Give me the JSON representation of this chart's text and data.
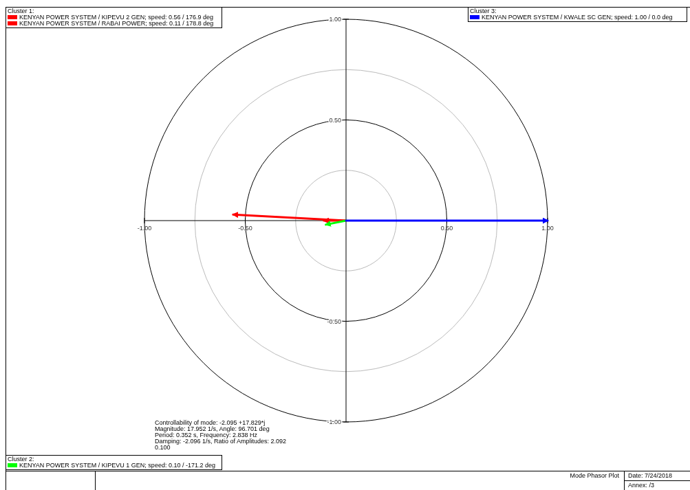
{
  "chart_data": {
    "type": "line",
    "title": "Mode Phasor Plot",
    "xlim": [
      -1,
      1
    ],
    "ylim": [
      -1,
      1
    ],
    "xticks": [
      {
        "value": -1,
        "label": "-1.00"
      },
      {
        "value": -0.5,
        "label": "-0.50"
      },
      {
        "value": 0.5,
        "label": "0.50"
      },
      {
        "value": 1,
        "label": "1.00"
      }
    ],
    "yticks": [
      {
        "value": -1,
        "label": "-1.00"
      },
      {
        "value": -0.5,
        "label": "-0.50"
      },
      {
        "value": 0.5,
        "label": "0.50"
      },
      {
        "value": 1,
        "label": "1.00"
      }
    ],
    "legend": "bottom left",
    "series": [
      {
        "name": "KENYAN POWER SYSTEM / KIPEVU 2 GEN; speed:  0.56 /  176.9 deg",
        "color": "#ff0000",
        "x": [
          0,
          -0.56
        ],
        "values": [
          0,
          0.03
        ]
      },
      {
        "name": "KENYAN POWER SYSTEM / RABAI POWER; speed:  0.11 /  178.8 deg",
        "color": "#ff0000",
        "x": [
          0,
          -0.11
        ],
        "values": [
          0,
          0.0
        ]
      },
      {
        "name": "KENYAN POWER SYSTEM / KIPEVU 1 GEN; speed:  0.10 / -171.2 deg",
        "color": "#00ff00",
        "x": [
          0,
          -0.1
        ],
        "values": [
          0,
          -0.02
        ]
      },
      {
        "name": "KENYAN POWER SYSTEM / KWALE SC GEN; speed:  1.00 /  0.0 deg",
        "color": "#0000ff",
        "x": [
          0,
          1.0
        ],
        "values": [
          0,
          0.0
        ]
      }
    ],
    "annotations": [
      "Cluster 1:",
      "Cluster 2:",
      "Cluster 3:",
      "Controllability of mode: -2.095 +17.829*j",
      "Magnitude: 17.952 1/s,  Angle: 96.701 deg",
      "Period: 0.352 s,  Frequency: 2.838 Hz",
      "Damping: -2.096 1/s,  Ratio of Amplitudes: 2.092",
      "0.100",
      "Date: 7/24/2018",
      "Annex:   /3"
    ]
  }
}
